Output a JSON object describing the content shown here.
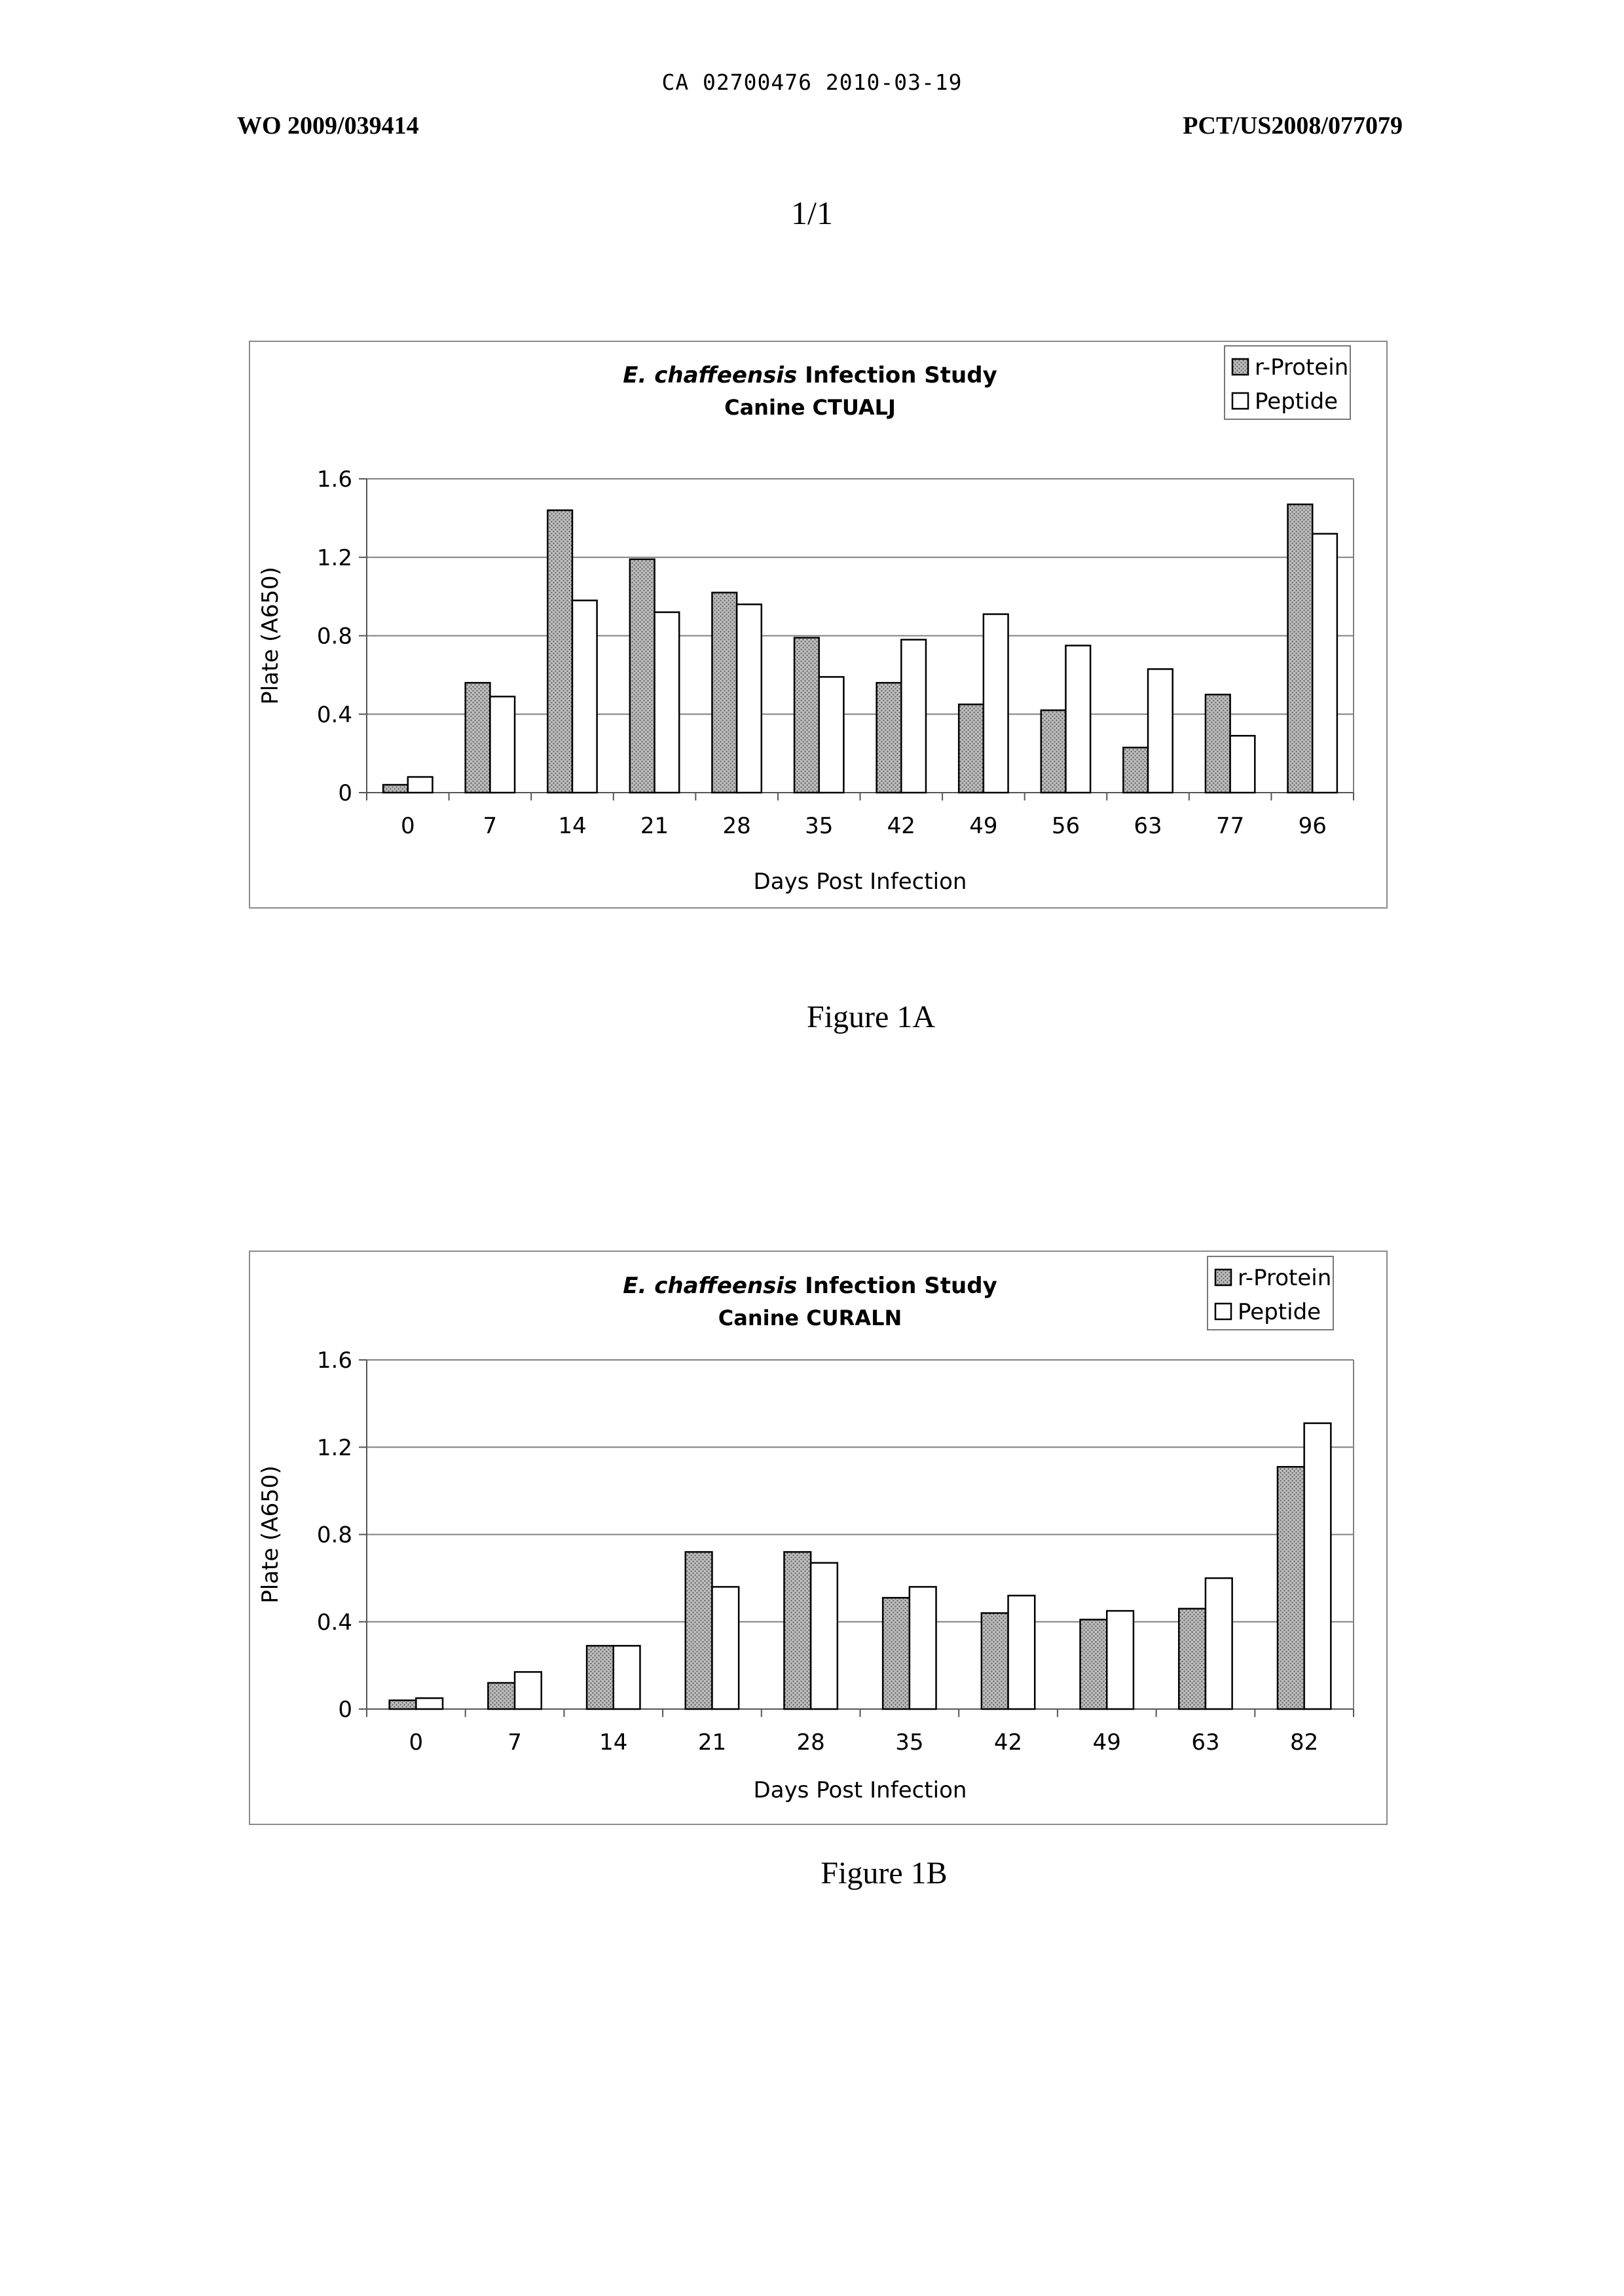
{
  "header": {
    "doc_id": "CA 02700476 2010-03-19",
    "left": "WO 2009/039414",
    "right": "PCT/US2008/077079",
    "page": "1/1"
  },
  "colors": {
    "r_protein_fill": "#bdbdbd",
    "peptide_fill": "#ffffff",
    "bar_stroke": "#000000",
    "grid": "#808080"
  },
  "chart_data": [
    {
      "type": "bar",
      "title_italic": "E. chaffeensis",
      "title_rest": " Infection Study",
      "subtitle": "Canine CTUALJ",
      "xlabel": "Days Post Infection",
      "ylabel": "Plate (A650)",
      "ylim": [
        0,
        1.6
      ],
      "yticks": [
        "0",
        "0.4",
        "0.8",
        "1.2",
        "1.6"
      ],
      "grid": true,
      "legend_position": "top-right",
      "categories": [
        "0",
        "7",
        "14",
        "21",
        "28",
        "35",
        "42",
        "49",
        "56",
        "63",
        "77",
        "96"
      ],
      "series": [
        {
          "name": "r-Protein",
          "values": [
            0.04,
            0.56,
            1.44,
            1.19,
            1.02,
            0.79,
            0.56,
            0.45,
            0.42,
            0.23,
            0.5,
            1.47
          ]
        },
        {
          "name": "Peptide",
          "values": [
            0.08,
            0.49,
            0.98,
            0.92,
            0.96,
            0.59,
            0.78,
            0.91,
            0.75,
            0.63,
            0.29,
            1.32
          ]
        }
      ],
      "caption": "Figure 1A"
    },
    {
      "type": "bar",
      "title_italic": "E. chaffeensis",
      "title_rest": " Infection Study",
      "subtitle": "Canine CURALN",
      "xlabel": "Days Post Infection",
      "ylabel": "Plate (A650)",
      "ylim": [
        0,
        1.6
      ],
      "yticks": [
        "0",
        "0.4",
        "0.8",
        "1.2",
        "1.6"
      ],
      "grid": true,
      "legend_position": "top-right",
      "categories": [
        "0",
        "7",
        "14",
        "21",
        "28",
        "35",
        "42",
        "49",
        "63",
        "82"
      ],
      "series": [
        {
          "name": "r-Protein",
          "values": [
            0.04,
            0.12,
            0.29,
            0.72,
            0.72,
            0.51,
            0.44,
            0.41,
            0.46,
            1.11
          ]
        },
        {
          "name": "Peptide",
          "values": [
            0.05,
            0.17,
            0.29,
            0.56,
            0.67,
            0.56,
            0.52,
            0.45,
            0.6,
            1.31
          ]
        }
      ],
      "caption": "Figure 1B"
    }
  ]
}
